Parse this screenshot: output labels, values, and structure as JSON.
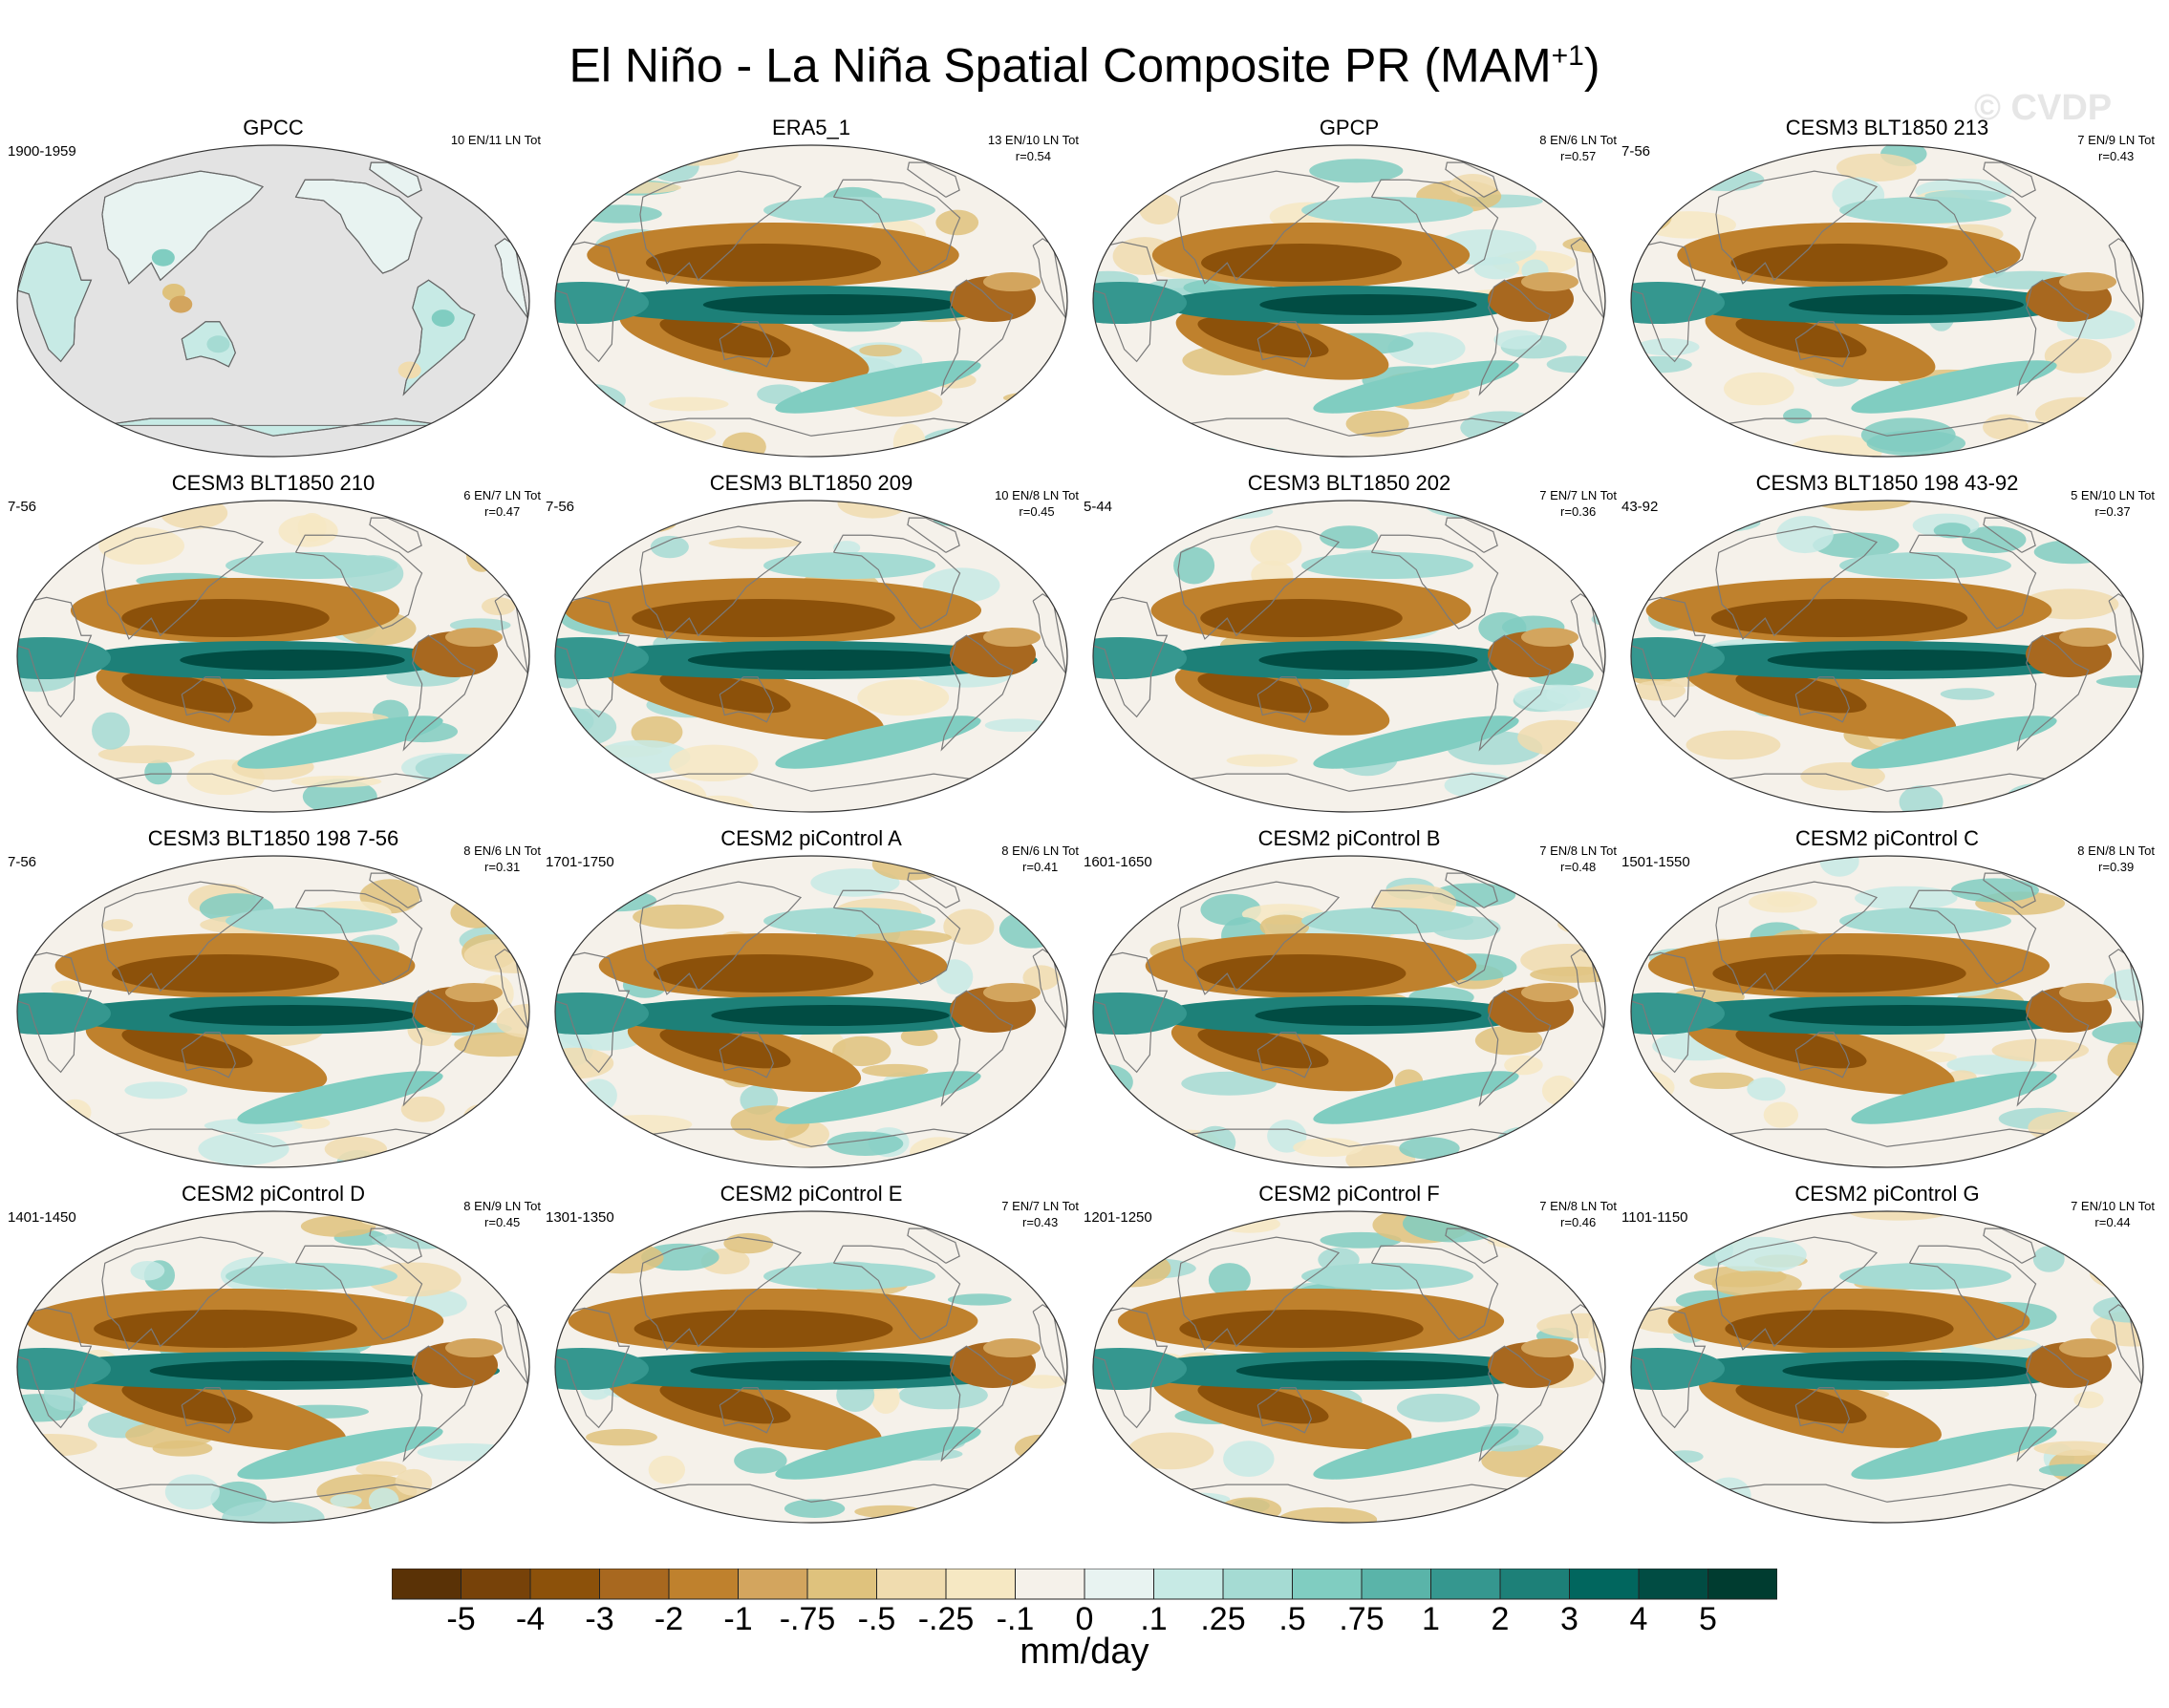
{
  "title": {
    "main": "El Niño - La Niña Spatial Composite PR (MAM",
    "sup": "+1",
    "close": ")"
  },
  "watermark": "© CVDP",
  "chart_data": {
    "type": "heatmap",
    "title": "El Niño - La Niña Spatial Composite PR (MAM+1)",
    "units": "mm/day",
    "colorbar": {
      "labels": [
        "-5",
        "-4",
        "-3",
        "-2",
        "-1",
        "-.75",
        "-.5",
        "-.25",
        "-.1",
        "0",
        ".1",
        ".25",
        ".5",
        ".75",
        "1",
        "2",
        "3",
        "4",
        "5"
      ],
      "colors": [
        "#5a3206",
        "#774209",
        "#8c510a",
        "#a8681f",
        "#bf812d",
        "#d3a55e",
        "#dfc27d",
        "#f0dcaf",
        "#f6e8c3",
        "#f5f1ea",
        "#e8f3f1",
        "#c7eae5",
        "#a5dbd3",
        "#80cdc1",
        "#5ab4a9",
        "#35978f",
        "#1d8078",
        "#01665e",
        "#014c43",
        "#003c30"
      ]
    },
    "panels": [
      {
        "name": "GPCC",
        "period": "1900-1959",
        "counts": "10 EN/11 LN Tot",
        "r": "",
        "land_only": true
      },
      {
        "name": "ERA5_1",
        "period": "",
        "counts": "13 EN/10 LN Tot",
        "r": "r=0.54"
      },
      {
        "name": "GPCP",
        "period": "",
        "counts": "8 EN/6 LN Tot",
        "r": "r=0.57"
      },
      {
        "name": "CESM3 BLT1850 213",
        "period": "7-56",
        "counts": "7 EN/9 LN Tot",
        "r": "r=0.43"
      },
      {
        "name": "CESM3 BLT1850 210",
        "period": "7-56",
        "counts": "6 EN/7 LN Tot",
        "r": "r=0.47"
      },
      {
        "name": "CESM3 BLT1850 209",
        "period": "7-56",
        "counts": "10 EN/8 LN Tot",
        "r": "r=0.45"
      },
      {
        "name": "CESM3 BLT1850 202",
        "period": "5-44",
        "counts": "7 EN/7 LN Tot",
        "r": "r=0.36"
      },
      {
        "name": "CESM3 BLT1850 198 43-92",
        "period": "43-92",
        "counts": "5 EN/10 LN Tot",
        "r": "r=0.37"
      },
      {
        "name": "CESM3 BLT1850 198 7-56",
        "period": "7-56",
        "counts": "8 EN/6 LN Tot",
        "r": "r=0.31"
      },
      {
        "name": "CESM2 piControl A",
        "period": "1701-1750",
        "counts": "8 EN/6 LN Tot",
        "r": "r=0.41"
      },
      {
        "name": "CESM2 piControl B",
        "period": "1601-1650",
        "counts": "7 EN/8 LN Tot",
        "r": "r=0.48"
      },
      {
        "name": "CESM2 piControl C",
        "period": "1501-1550",
        "counts": "8 EN/8 LN Tot",
        "r": "r=0.39"
      },
      {
        "name": "CESM2 piControl D",
        "period": "1401-1450",
        "counts": "8 EN/9 LN Tot",
        "r": "r=0.45"
      },
      {
        "name": "CESM2 piControl E",
        "period": "1301-1350",
        "counts": "7 EN/7 LN Tot",
        "r": "r=0.43"
      },
      {
        "name": "CESM2 piControl F",
        "period": "1201-1250",
        "counts": "7 EN/8 LN Tot",
        "r": "r=0.46"
      },
      {
        "name": "CESM2 piControl G",
        "period": "1101-1150",
        "counts": "7 EN/10 LN Tot",
        "r": "r=0.44"
      }
    ]
  }
}
